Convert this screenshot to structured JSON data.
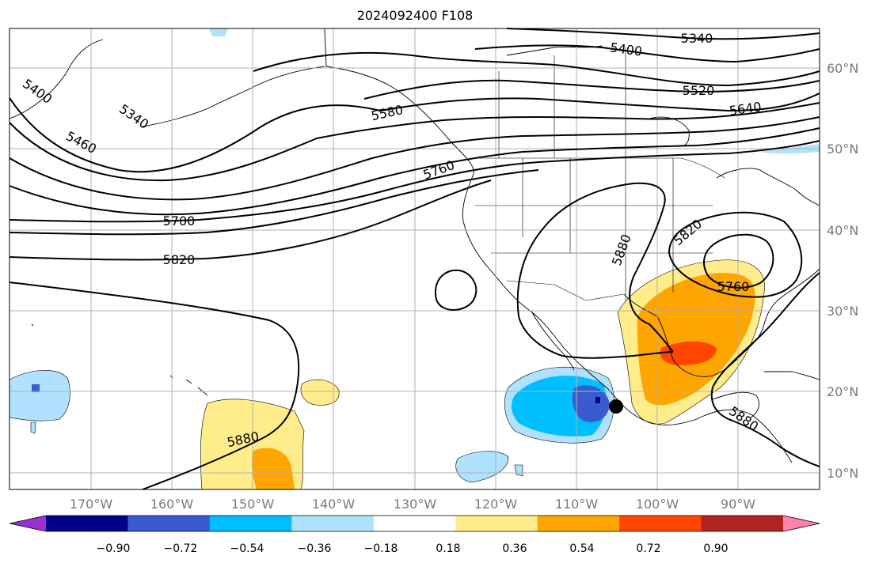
{
  "title": "2024092400 F108",
  "longitude_labels": [
    "170°W",
    "160°W",
    "150°W",
    "140°W",
    "130°W",
    "120°W",
    "110°W",
    "100°W",
    "90°W"
  ],
  "latitude_labels": [
    "60°N",
    "50°N",
    "40°N",
    "30°N",
    "20°N",
    "10°N"
  ],
  "contour_labels": {
    "c5340_top": "5340",
    "c5400_top": "5400",
    "c5520": "5520",
    "c5640": "5640",
    "c5400_left": "5400",
    "c5340_left": "5340",
    "c5460": "5460",
    "c5580": "5580",
    "c5760_west": "5760",
    "c5700": "5700",
    "c5820_west": "5820",
    "c5880_east": "5880",
    "c5820_east": "5820",
    "c5760_east": "5760",
    "c5880_south": "5880",
    "c5880_gulf": "5880"
  },
  "colorbar": {
    "ticks": [
      "−0.90",
      "−0.72",
      "−0.54",
      "−0.36",
      "−0.18",
      "0.18",
      "0.36",
      "0.54",
      "0.72",
      "0.90"
    ],
    "colors": [
      "#9b30d0",
      "#00008b",
      "#3a5bd0",
      "#00bfff",
      "#b0e2ff",
      "#ffffff",
      "#ffec8b",
      "#ffa500",
      "#ff4500",
      "#b22222",
      "#ff82ab"
    ]
  },
  "markers": {
    "storm_dot_color": "#000000"
  }
}
